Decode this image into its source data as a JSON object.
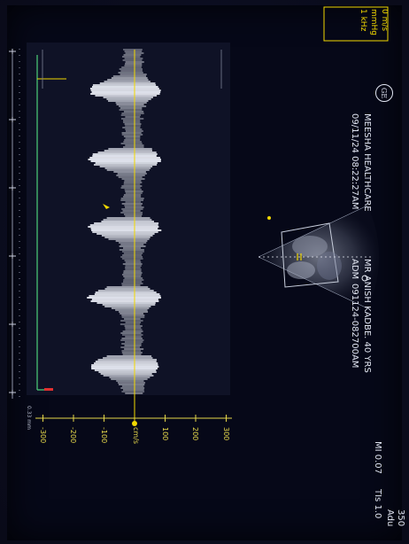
{
  "overlay": {
    "top_right_lines": [
      "0 m/s",
      "mmHg",
      "1 kHz"
    ]
  },
  "header": {
    "logo_text": "GE",
    "institution": "MEESHA HEALTHCARE",
    "timestamp": "09/11/24 08:22:27AM",
    "patient": "MR ANISH KADBE. 40 YRS",
    "adm_label": "ADM",
    "adm_value": "091124-082700AM"
  },
  "indicators": {
    "mi": "MI 0.07",
    "tis": "TIs 1.0",
    "edge_top": "350",
    "edge_bottom": "Adu"
  },
  "doppler": {
    "unit_label": "cm/s",
    "ticks": [
      300,
      200,
      100,
      -100,
      -200,
      -300
    ],
    "tick_labels": [
      "300",
      "200",
      "100",
      "-100",
      "-200",
      "-300"
    ],
    "sweep_label": "0.33 mm",
    "time_markers": 6
  },
  "colors": {
    "cursor": "#f2d800",
    "ecg": "#4cd07a",
    "accent": "#e03030"
  }
}
